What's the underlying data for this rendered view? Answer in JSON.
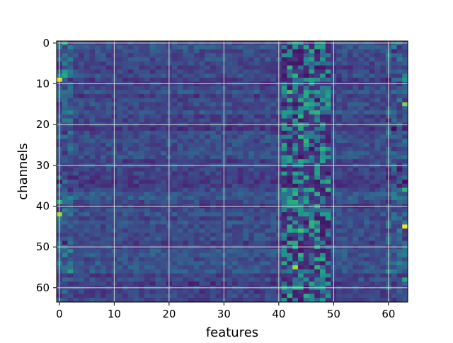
{
  "chart_data": {
    "type": "heatmap",
    "title": "",
    "xlabel": "features",
    "ylabel": "channels",
    "n_cols": 64,
    "n_rows": 64,
    "x_ticks": [
      0,
      10,
      20,
      30,
      40,
      50,
      60
    ],
    "y_ticks": [
      0,
      10,
      20,
      30,
      40,
      50,
      60
    ],
    "y_axis_inverted": true,
    "grid": true,
    "colormap": "viridis",
    "colormap_stops": [
      "#440154",
      "#482878",
      "#3e4989",
      "#31688e",
      "#26828e",
      "#1f9e89",
      "#35b779",
      "#6ece58",
      "#b5de2b",
      "#fde725"
    ],
    "value_range": [
      0,
      1
    ],
    "grid_color": "#d9d9d9",
    "highlights": [
      {
        "row": 0,
        "col": 1,
        "value": 0.6
      },
      {
        "row": 9,
        "col": 0,
        "value": 0.95
      },
      {
        "row": 8,
        "col": 1,
        "value": 0.6
      },
      {
        "row": 7,
        "col": 1,
        "value": 0.55
      },
      {
        "row": 12,
        "col": 42,
        "value": 0.7
      },
      {
        "row": 13,
        "col": 45,
        "value": 0.6
      },
      {
        "row": 15,
        "col": 63,
        "value": 0.8
      },
      {
        "row": 17,
        "col": 47,
        "value": 0.65
      },
      {
        "row": 20,
        "col": 44,
        "value": 0.6
      },
      {
        "row": 24,
        "col": 45,
        "value": 0.65
      },
      {
        "row": 29,
        "col": 44,
        "value": 0.6
      },
      {
        "row": 31,
        "col": 47,
        "value": 0.55
      },
      {
        "row": 36,
        "col": 63,
        "value": 0.65
      },
      {
        "row": 39,
        "col": 0,
        "value": 0.65
      },
      {
        "row": 42,
        "col": 0,
        "value": 0.85
      },
      {
        "row": 45,
        "col": 63,
        "value": 0.98
      },
      {
        "row": 46,
        "col": 44,
        "value": 0.7
      },
      {
        "row": 49,
        "col": 43,
        "value": 0.6
      },
      {
        "row": 52,
        "col": 44,
        "value": 0.65
      },
      {
        "row": 55,
        "col": 43,
        "value": 0.85
      },
      {
        "row": 56,
        "col": 2,
        "value": 0.55
      },
      {
        "row": 58,
        "col": 63,
        "value": 0.6
      },
      {
        "row": 60,
        "col": 44,
        "value": 0.6
      },
      {
        "row": 9,
        "col": 63,
        "value": 0.55
      }
    ]
  }
}
